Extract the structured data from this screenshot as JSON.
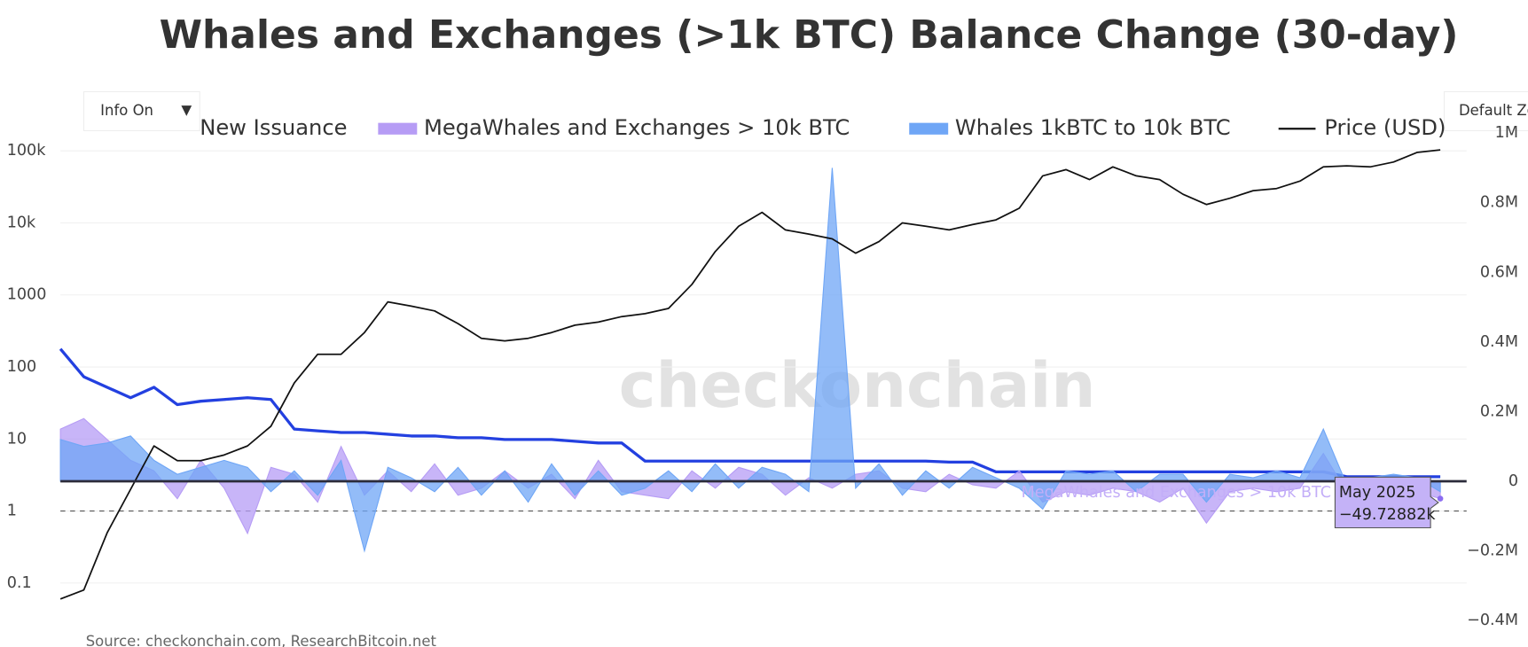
{
  "chart_data": {
    "type": "line",
    "title": "Whales and Exchanges (>1k BTC) Balance Change (30-day)",
    "source": "Source: checkonchain.com, ResearchBitcoin.net",
    "watermark": "checkonchain",
    "controls": {
      "info": "Info On",
      "dropdown": "▼",
      "zoom": "Default Zo"
    },
    "categories": [
      null,
      null,
      null,
      null,
      null,
      null,
      null,
      null,
      null,
      null,
      null,
      null,
      null,
      null,
      null,
      null,
      null,
      null,
      null,
      null,
      null,
      null,
      null,
      null,
      null,
      null,
      null,
      null,
      null,
      null,
      null,
      null,
      null,
      null,
      null,
      null,
      null,
      null,
      null,
      null,
      null,
      null,
      null,
      null,
      null,
      null,
      null,
      null,
      null,
      null,
      null,
      null,
      null,
      null,
      null,
      null,
      null,
      null,
      null,
      null
    ],
    "log_y": true,
    "ylim": [
      0.013,
      550000
    ],
    "yticks": [
      0.1,
      1,
      10,
      100,
      1000,
      {
        "value": 10000,
        "label": "10k"
      },
      {
        "value": 100000,
        "label": "100k"
      }
    ],
    "y2lim": [
      -475500,
      1102000
    ],
    "y2ticks": [
      {
        "value": -400000,
        "label": "−0.4M"
      },
      {
        "value": -200000,
        "label": "−0.2M"
      },
      0,
      {
        "value": 200000,
        "label": "0.2M"
      },
      {
        "value": 400000,
        "label": "0.4M"
      },
      {
        "value": 600000,
        "label": "0.6M"
      },
      {
        "value": 800000,
        "label": "0.8M"
      },
      {
        "value": 1000000,
        "label": "1M"
      }
    ],
    "grid": true,
    "reference_line": 1,
    "series": [
      {
        "name": "New Issuance",
        "color": "#2340e0",
        "style": "line",
        "axis": "y2",
        "values": [
          380000,
          300000,
          270000,
          240000,
          270000,
          220000,
          230000,
          235000,
          240000,
          235000,
          150000,
          145000,
          140000,
          140000,
          135000,
          130000,
          130000,
          125000,
          125000,
          120000,
          120000,
          120000,
          115000,
          110000,
          110000,
          58000,
          58000,
          58000,
          58000,
          58000,
          58000,
          58000,
          58000,
          58000,
          58000,
          58000,
          58000,
          58000,
          55000,
          55000,
          27000,
          27000,
          27000,
          27000,
          27000,
          27000,
          27000,
          27000,
          27000,
          27000,
          27000,
          27000,
          27000,
          27000,
          27000,
          13000,
          13000,
          13000,
          13000,
          13000
        ]
      },
      {
        "name": "MegaWhales and Exchanges > 10k BTC",
        "color": "#b69cf5",
        "style": "area",
        "axis": "y2",
        "values": [
          150000,
          180000,
          120000,
          60000,
          30000,
          -50000,
          60000,
          -20000,
          -150000,
          40000,
          20000,
          -60000,
          100000,
          -40000,
          30000,
          -30000,
          50000,
          -40000,
          -20000,
          30000,
          -20000,
          20000,
          -50000,
          60000,
          -30000,
          -40000,
          -50000,
          30000,
          -20000,
          40000,
          20000,
          -40000,
          10000,
          -20000,
          20000,
          30000,
          -20000,
          -30000,
          20000,
          -10000,
          -20000,
          30000,
          -60000,
          -30000,
          -40000,
          -20000,
          -30000,
          -60000,
          -20000,
          -120000,
          -30000,
          -20000,
          -30000,
          -20000,
          80000,
          -30000,
          -20000,
          -40000,
          -30000,
          -50000
        ]
      },
      {
        "name": "Whales 1kBTC to 10k BTC",
        "color": "#6fa6f6",
        "style": "area",
        "axis": "y2",
        "values": [
          120000,
          100000,
          110000,
          130000,
          60000,
          20000,
          40000,
          60000,
          40000,
          -30000,
          30000,
          -40000,
          60000,
          -200000,
          40000,
          10000,
          -30000,
          40000,
          -40000,
          30000,
          -60000,
          50000,
          -40000,
          30000,
          -40000,
          -20000,
          30000,
          -30000,
          50000,
          -20000,
          40000,
          20000,
          -30000,
          900000,
          -20000,
          50000,
          -40000,
          30000,
          -20000,
          40000,
          10000,
          -20000,
          -80000,
          30000,
          20000,
          30000,
          -30000,
          20000,
          20000,
          -60000,
          20000,
          10000,
          30000,
          10000,
          150000,
          -10000,
          10000,
          20000,
          10000,
          -30000
        ]
      },
      {
        "name": "Price (USD)",
        "color": "#111111",
        "style": "line",
        "axis": "y",
        "values": [
          0.06,
          0.08,
          0.5,
          2,
          8,
          5,
          5,
          6,
          8,
          15,
          60,
          150,
          150,
          300,
          800,
          700,
          600,
          400,
          250,
          230,
          250,
          300,
          380,
          420,
          500,
          550,
          650,
          1400,
          4000,
          9000,
          14000,
          8000,
          7000,
          6000,
          3800,
          5500,
          10000,
          9000,
          8000,
          9500,
          11000,
          16000,
          45000,
          55000,
          40000,
          60000,
          45000,
          40000,
          25000,
          18000,
          22000,
          28000,
          30000,
          38000,
          60000,
          62000,
          60000,
          70000,
          95000,
          103000
        ]
      }
    ],
    "tooltip": {
      "name": "MegaWhales and Exchanges > 10k BTC",
      "date": "May 2025",
      "value": -49728.82,
      "value_label": "−49.72882k"
    }
  }
}
